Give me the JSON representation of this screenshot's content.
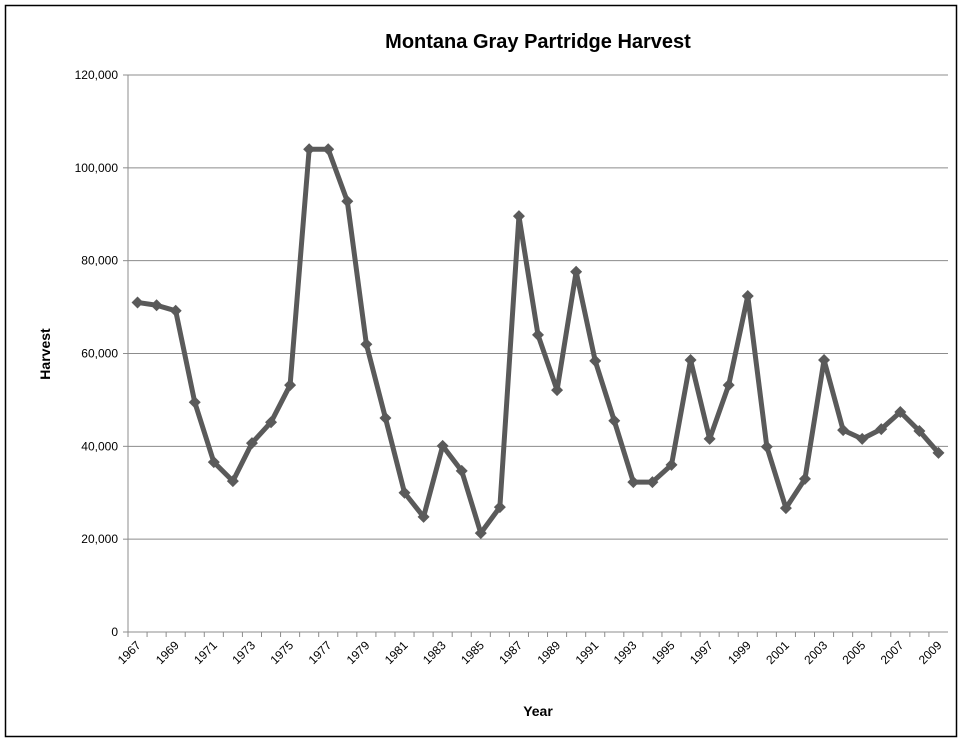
{
  "chart_data": {
    "type": "line",
    "title": "Montana Gray Partridge Harvest",
    "x_label": "Year",
    "y_label": "Harvest",
    "categories": [
      "1967",
      null,
      "1969",
      null,
      "1971",
      null,
      "1973",
      null,
      "1975",
      null,
      "1977",
      null,
      "1979",
      null,
      "1981",
      null,
      "1983",
      null,
      "1985",
      null,
      "1987",
      null,
      "1989",
      null,
      "1991",
      null,
      "1993",
      null,
      "1995",
      null,
      "1997",
      null,
      "1999",
      null,
      "2001",
      null,
      "2003",
      null,
      "2005",
      null,
      "2007",
      null,
      "2009"
    ],
    "series": [
      {
        "name": "Harvest",
        "color": "#5a5a5a",
        "values": [
          71000,
          70400,
          69200,
          49500,
          36600,
          32500,
          40700,
          45200,
          53200,
          104000,
          104000,
          92800,
          62000,
          46100,
          30000,
          24800,
          40100,
          34700,
          21300,
          26900,
          89600,
          64000,
          52100,
          77600,
          58400,
          45500,
          32300,
          32300,
          36000,
          58600,
          41600,
          53200,
          72400,
          39900,
          26700,
          33000,
          58600,
          43500,
          41600,
          43700,
          47400,
          43300,
          38600
        ]
      }
    ],
    "ylim": [
      0,
      120000
    ],
    "yticks": [
      0,
      {
        "value": 20000,
        "label": "20,000"
      },
      {
        "value": 40000,
        "label": "40,000"
      },
      {
        "value": 60000,
        "label": "60,000"
      },
      {
        "value": 80000,
        "label": "80,000"
      },
      {
        "value": 100000,
        "label": "100,000"
      },
      {
        "value": 120000,
        "label": "120,000"
      }
    ],
    "grid": true,
    "legend": false
  }
}
